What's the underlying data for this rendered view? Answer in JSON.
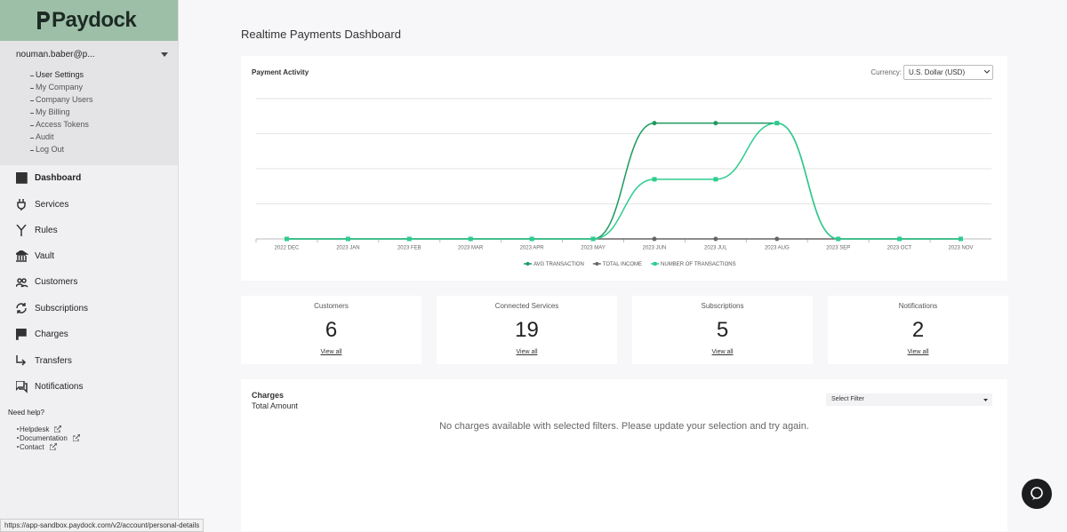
{
  "sidebar": {
    "logo": "Paydock",
    "user": "nouman.baber@p...",
    "account_menu": [
      "User Settings",
      "My Company",
      "Company Users",
      "My Billing",
      "Access Tokens",
      "Audit",
      "Log Out"
    ],
    "nav": [
      "Dashboard",
      "Services",
      "Rules",
      "Vault",
      "Customers",
      "Subscriptions",
      "Charges",
      "Transfers",
      "Notifications"
    ],
    "help_title": "Need help?",
    "help_links": [
      "Helpdesk",
      "Documentation",
      "Contact"
    ]
  },
  "page_title": "Realtime Payments Dashboard",
  "chart_data": {
    "type": "line",
    "title": "Payment Activity",
    "currency_label": "Currency:",
    "currency": "U.S. Dollar (USD)",
    "categories": [
      "2022 DEC",
      "2023 JAN",
      "2023 FEB",
      "2023 MAR",
      "2023 APR",
      "2023 MAY",
      "2023 JUN",
      "2023 JUL",
      "2023 AUG",
      "2023 SEP",
      "2023 OCT",
      "2023 NOV"
    ],
    "series": [
      {
        "name": "AVG TRANSACTION",
        "color": "#1e9960",
        "marker": "circle",
        "values": [
          0,
          0,
          0,
          0,
          0,
          0,
          3.3,
          3.3,
          3.3,
          0,
          0,
          0
        ]
      },
      {
        "name": "TOTAL INCOME",
        "color": "#666666",
        "marker": "circle",
        "values": [
          0,
          0,
          0,
          0,
          0,
          0,
          0,
          0,
          0,
          0,
          0,
          0
        ]
      },
      {
        "name": "NUMBER OF TRANSACTIONS",
        "color": "#2ecc8e",
        "marker": "square",
        "values": [
          0,
          0,
          0,
          0,
          0,
          0,
          1.7,
          1.7,
          3.3,
          0,
          0,
          0
        ]
      }
    ],
    "ylim": [
      0,
      4
    ],
    "gridlines": [
      1,
      2,
      3,
      4
    ],
    "grid": true
  },
  "stats": [
    {
      "label": "Customers",
      "value": 6,
      "link": "View all"
    },
    {
      "label": "Connected Services",
      "value": 19,
      "link": "View all"
    },
    {
      "label": "Subscriptions",
      "value": 5,
      "link": "View all"
    },
    {
      "label": "Notifications",
      "value": 2,
      "link": "View all"
    }
  ],
  "charges": {
    "title": "Charges",
    "subtitle": "Total Amount",
    "filter": "Select Filter",
    "empty_message": "No charges available with selected filters. Please update your selection and try again."
  },
  "status_url": "https://app-sandbox.paydock.com/v2/account/personal-details"
}
